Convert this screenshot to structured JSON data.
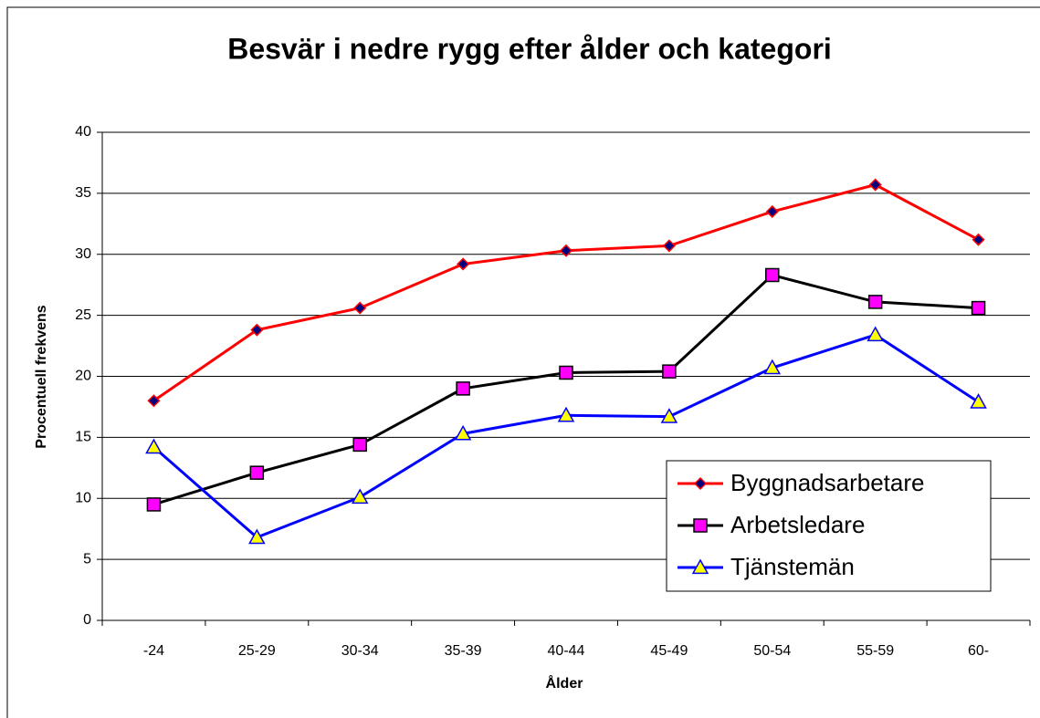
{
  "chart_data": {
    "type": "line",
    "title": "Besvär i nedre rygg efter ålder och kategori",
    "x_label": "Ålder",
    "y_label": "Procentuell frekvens",
    "categories": [
      "-24",
      "25-29",
      "30-34",
      "35-39",
      "40-44",
      "45-49",
      "50-54",
      "55-59",
      "60-"
    ],
    "series": [
      {
        "name": "Byggnadsarbetare",
        "color": "#ff0000",
        "marker": "diamond",
        "marker_color": "#000080",
        "marker_edge": "#ff0000",
        "values": [
          18,
          23.8,
          25.6,
          29.2,
          30.3,
          30.7,
          33.5,
          35.7,
          31.2
        ]
      },
      {
        "name": "Arbetsledare",
        "color": "#000000",
        "marker": "square",
        "marker_color": "#ff00ff",
        "marker_edge": "#000000",
        "values": [
          9.5,
          12.1,
          14.4,
          19.0,
          20.3,
          20.4,
          28.3,
          26.1,
          25.6
        ]
      },
      {
        "name": "Tjänstemän",
        "color": "#0000ff",
        "marker": "triangle",
        "marker_color": "#ffff00",
        "marker_edge": "#0000ff",
        "values": [
          14.2,
          6.8,
          10.1,
          15.3,
          16.8,
          16.7,
          20.7,
          23.4,
          17.9
        ]
      }
    ],
    "ylim": [
      0,
      40
    ],
    "yticks": [
      0,
      5,
      10,
      15,
      20,
      25,
      30,
      35,
      40
    ],
    "grid": true,
    "legend_position": "lower right"
  }
}
